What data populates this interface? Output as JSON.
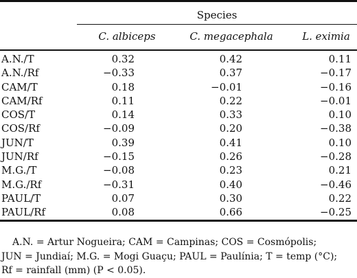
{
  "table": {
    "group_header": "Species",
    "columns": [
      "C. albiceps",
      "C. megacephala",
      "L. eximia"
    ],
    "rows": [
      {
        "site": "A.N./T",
        "values": [
          "0.32",
          "0.42",
          "0.11"
        ]
      },
      {
        "site": "A.N./Rf",
        "values": [
          "−0.33",
          "0.37",
          "−0.17"
        ]
      },
      {
        "site": "CAM/T",
        "values": [
          "0.18",
          "−0.01",
          "−0.16"
        ]
      },
      {
        "site": "CAM/Rf",
        "values": [
          "0.11",
          "0.22",
          "−0.01"
        ]
      },
      {
        "site": "COS/T",
        "values": [
          "0.14",
          "0.33",
          "0.10"
        ]
      },
      {
        "site": "COS/Rf",
        "values": [
          "−0.09",
          "0.20",
          "−0.38"
        ]
      },
      {
        "site": "JUN/T",
        "values": [
          "0.39",
          "0.41",
          "0.10"
        ]
      },
      {
        "site": "JUN/Rf",
        "values": [
          "−0.15",
          "0.26",
          "−0.28"
        ]
      },
      {
        "site": "M.G./T",
        "values": [
          "−0.08",
          "0.23",
          "0.21"
        ]
      },
      {
        "site": "M.G./Rf",
        "values": [
          "−0.31",
          "0.40",
          "−0.46"
        ]
      },
      {
        "site": "PAUL/T",
        "values": [
          "0.07",
          "0.30",
          "0.22"
        ]
      },
      {
        "site": "PAUL/Rf",
        "values": [
          "0.08",
          "0.66",
          "−0.25"
        ]
      }
    ]
  },
  "footnote": {
    "line1": "A.N. = Artur Nogueira; CAM = Campinas; COS = Cosmópolis;",
    "line2": "JUN = Jundiaí; M.G. = Mogi Guaçu; PAUL = Paulínia; T = temp (°C);",
    "line3": "Rf = rainfall (mm) (P < 0.05)."
  }
}
